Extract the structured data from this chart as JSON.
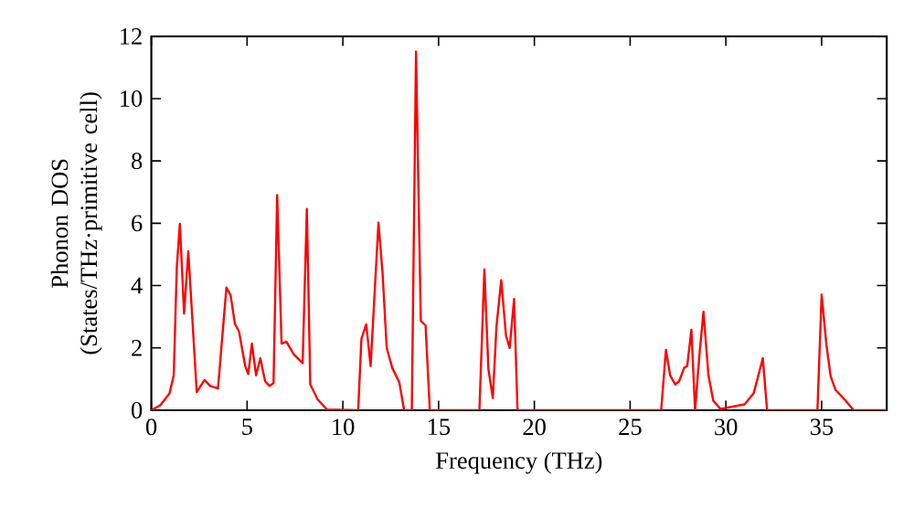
{
  "chart_data": {
    "type": "line",
    "xlabel": "Frequency (THz)",
    "ylabel": "Phonon DOS (States/THz·primitive cell)",
    "x": [
      0,
      0.47,
      0.95,
      1.17,
      1.33,
      1.49,
      1.71,
      1.93,
      2.37,
      2.78,
      3.07,
      3.48,
      3.92,
      4.14,
      4.36,
      4.58,
      4.9,
      5.06,
      5.25,
      5.47,
      5.69,
      5.94,
      6.17,
      6.38,
      6.57,
      6.8,
      7.05,
      7.43,
      7.9,
      8.12,
      8.3,
      8.68,
      9.17,
      10.8,
      10.97,
      11.22,
      11.45,
      11.86,
      12.07,
      12.29,
      12.58,
      12.95,
      13.2,
      13.6,
      13.82,
      14.07,
      14.32,
      14.54,
      17.13,
      17.39,
      17.6,
      17.83,
      18.02,
      18.27,
      18.52,
      18.71,
      18.94,
      19.12,
      26.62,
      26.87,
      27.09,
      27.35,
      27.56,
      27.82,
      27.98,
      28.2,
      28.39,
      28.61,
      28.83,
      29.09,
      29.34,
      29.72,
      30.98,
      31.45,
      31.93,
      32.15,
      34.78,
      35.0,
      35.25,
      35.47,
      35.72,
      36.19,
      36.67,
      38.4
    ],
    "values": [
      0,
      0.16,
      0.54,
      1.12,
      4.6,
      5.98,
      3.1,
      5.1,
      0.58,
      0.97,
      0.78,
      0.7,
      3.94,
      3.69,
      2.78,
      2.52,
      1.42,
      1.16,
      2.14,
      1.12,
      1.67,
      0.93,
      0.78,
      0.87,
      6.91,
      2.14,
      2.2,
      1.8,
      1.51,
      6.46,
      0.83,
      0.35,
      0.02,
      0,
      2.29,
      2.76,
      1.42,
      6.02,
      4.43,
      2.0,
      1.36,
      0.89,
      0,
      0,
      11.51,
      2.87,
      2.72,
      0,
      0,
      4.52,
      1.32,
      0.39,
      2.68,
      4.17,
      2.39,
      2.0,
      3.57,
      0,
      0,
      1.94,
      1.12,
      0.83,
      0.93,
      1.36,
      1.42,
      2.58,
      0,
      1.71,
      3.16,
      1.12,
      0.31,
      0.04,
      0.19,
      0.54,
      1.67,
      0,
      0,
      3.71,
      2.1,
      1.09,
      0.66,
      0.35,
      0,
      0
    ],
    "color": "#ff0000",
    "xlim": [
      0,
      38.4
    ],
    "ylim": [
      0,
      12
    ],
    "xticks": [
      0,
      5,
      10,
      15,
      20,
      25,
      30,
      35
    ],
    "yticks": [
      0,
      2,
      4,
      6,
      8,
      10,
      12
    ],
    "grid": false
  }
}
